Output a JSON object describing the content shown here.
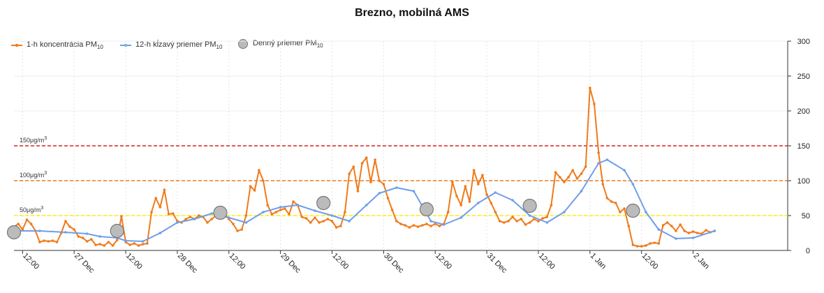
{
  "chart_data": {
    "type": "line",
    "title": "Brezno, mobilná AMS",
    "y_axis": {
      "min": 0,
      "max": 300,
      "ticks": [
        0,
        50,
        100,
        150,
        200,
        250,
        300
      ],
      "position": "right"
    },
    "x_axis": {
      "start": "2020-12-26T10:00",
      "end": "2021-01-02T22:00",
      "tick_labels": [
        "12:00",
        "27 Dec",
        "12:00",
        "28 Dec",
        "12:00",
        "29 Dec",
        "12:00",
        "30 Dec",
        "12:00",
        "31 Dec",
        "12:00",
        "1 Jan",
        "12:00",
        "2 Jan"
      ],
      "tick_times": [
        "2020-12-26T12:00",
        "2020-12-27T00:00",
        "2020-12-27T12:00",
        "2020-12-28T00:00",
        "2020-12-28T12:00",
        "2020-12-29T00:00",
        "2020-12-29T12:00",
        "2020-12-30T00:00",
        "2020-12-30T12:00",
        "2020-12-31T00:00",
        "2020-12-31T12:00",
        "2021-01-01T00:00",
        "2021-01-01T12:00",
        "2021-01-02T00:00"
      ]
    },
    "grid": true,
    "legend_position": "top-left",
    "thresholds": [
      {
        "value": 150,
        "label": "150μg/m",
        "sup": "3",
        "color": "#dd2222"
      },
      {
        "value": 100,
        "label": "100μg/m",
        "sup": "3",
        "color": "#f07a1a"
      },
      {
        "value": 50,
        "label": "50μg/m",
        "sup": "3",
        "color": "#ffee00"
      }
    ],
    "series": [
      {
        "name": "1-h koncentrácia PM",
        "name_sub": "10",
        "color": "#f07a1a",
        "kind": "line",
        "points": [
          [
            "2020-12-26T10:00",
            34
          ],
          [
            "2020-12-26T11:00",
            38
          ],
          [
            "2020-12-26T12:00",
            30
          ],
          [
            "2020-12-26T13:00",
            44
          ],
          [
            "2020-12-26T14:00",
            38
          ],
          [
            "2020-12-26T15:00",
            28
          ],
          [
            "2020-12-26T16:00",
            12
          ],
          [
            "2020-12-26T17:00",
            14
          ],
          [
            "2020-12-26T18:00",
            13
          ],
          [
            "2020-12-26T19:00",
            14
          ],
          [
            "2020-12-26T20:00",
            12
          ],
          [
            "2020-12-26T21:00",
            25
          ],
          [
            "2020-12-26T22:00",
            42
          ],
          [
            "2020-12-26T23:00",
            34
          ],
          [
            "2020-12-27T00:00",
            30
          ],
          [
            "2020-12-27T01:00",
            20
          ],
          [
            "2020-12-27T02:00",
            18
          ],
          [
            "2020-12-27T03:00",
            13
          ],
          [
            "2020-12-27T04:00",
            16
          ],
          [
            "2020-12-27T05:00",
            8
          ],
          [
            "2020-12-27T06:00",
            9
          ],
          [
            "2020-12-27T07:00",
            7
          ],
          [
            "2020-12-27T08:00",
            12
          ],
          [
            "2020-12-27T09:00",
            7
          ],
          [
            "2020-12-27T10:00",
            15
          ],
          [
            "2020-12-27T11:00",
            49
          ],
          [
            "2020-12-27T12:00",
            12
          ],
          [
            "2020-12-27T13:00",
            8
          ],
          [
            "2020-12-27T14:00",
            10
          ],
          [
            "2020-12-27T15:00",
            7
          ],
          [
            "2020-12-27T16:00",
            9
          ],
          [
            "2020-12-27T17:00",
            10
          ],
          [
            "2020-12-27T18:00",
            55
          ],
          [
            "2020-12-27T19:00",
            75
          ],
          [
            "2020-12-27T20:00",
            62
          ],
          [
            "2020-12-27T21:00",
            87
          ],
          [
            "2020-12-27T22:00",
            52
          ],
          [
            "2020-12-27T23:00",
            53
          ],
          [
            "2020-12-28T00:00",
            42
          ],
          [
            "2020-12-28T01:00",
            40
          ],
          [
            "2020-12-28T02:00",
            45
          ],
          [
            "2020-12-28T03:00",
            48
          ],
          [
            "2020-12-28T04:00",
            45
          ],
          [
            "2020-12-28T05:00",
            50
          ],
          [
            "2020-12-28T06:00",
            48
          ],
          [
            "2020-12-28T07:00",
            40
          ],
          [
            "2020-12-28T08:00",
            45
          ],
          [
            "2020-12-28T09:00",
            50
          ],
          [
            "2020-12-28T10:00",
            55
          ],
          [
            "2020-12-28T11:00",
            52
          ],
          [
            "2020-12-28T12:00",
            45
          ],
          [
            "2020-12-28T13:00",
            38
          ],
          [
            "2020-12-28T14:00",
            28
          ],
          [
            "2020-12-28T15:00",
            30
          ],
          [
            "2020-12-28T16:00",
            50
          ],
          [
            "2020-12-28T17:00",
            92
          ],
          [
            "2020-12-28T18:00",
            86
          ],
          [
            "2020-12-28T19:00",
            115
          ],
          [
            "2020-12-28T20:00",
            100
          ],
          [
            "2020-12-28T21:00",
            65
          ],
          [
            "2020-12-28T22:00",
            52
          ],
          [
            "2020-12-28T23:00",
            55
          ],
          [
            "2020-12-29T00:00",
            58
          ],
          [
            "2020-12-29T01:00",
            60
          ],
          [
            "2020-12-29T02:00",
            52
          ],
          [
            "2020-12-29T03:00",
            70
          ],
          [
            "2020-12-29T04:00",
            65
          ],
          [
            "2020-12-29T05:00",
            48
          ],
          [
            "2020-12-29T06:00",
            46
          ],
          [
            "2020-12-29T07:00",
            40
          ],
          [
            "2020-12-29T08:00",
            47
          ],
          [
            "2020-12-29T09:00",
            40
          ],
          [
            "2020-12-29T10:00",
            42
          ],
          [
            "2020-12-29T11:00",
            45
          ],
          [
            "2020-12-29T12:00",
            42
          ],
          [
            "2020-12-29T13:00",
            33
          ],
          [
            "2020-12-29T14:00",
            35
          ],
          [
            "2020-12-29T15:00",
            55
          ],
          [
            "2020-12-29T16:00",
            110
          ],
          [
            "2020-12-29T17:00",
            120
          ],
          [
            "2020-12-29T18:00",
            85
          ],
          [
            "2020-12-29T19:00",
            125
          ],
          [
            "2020-12-29T20:00",
            133
          ],
          [
            "2020-12-29T21:00",
            98
          ],
          [
            "2020-12-29T22:00",
            130
          ],
          [
            "2020-12-29T23:00",
            100
          ],
          [
            "2020-12-30T00:00",
            95
          ],
          [
            "2020-12-30T01:00",
            75
          ],
          [
            "2020-12-30T02:00",
            58
          ],
          [
            "2020-12-30T03:00",
            42
          ],
          [
            "2020-12-30T04:00",
            38
          ],
          [
            "2020-12-30T05:00",
            36
          ],
          [
            "2020-12-30T06:00",
            33
          ],
          [
            "2020-12-30T07:00",
            36
          ],
          [
            "2020-12-30T08:00",
            34
          ],
          [
            "2020-12-30T09:00",
            36
          ],
          [
            "2020-12-30T10:00",
            38
          ],
          [
            "2020-12-30T11:00",
            35
          ],
          [
            "2020-12-30T12:00",
            38
          ],
          [
            "2020-12-30T13:00",
            35
          ],
          [
            "2020-12-30T14:00",
            38
          ],
          [
            "2020-12-30T15:00",
            55
          ],
          [
            "2020-12-30T16:00",
            98
          ],
          [
            "2020-12-30T17:00",
            78
          ],
          [
            "2020-12-30T18:00",
            65
          ],
          [
            "2020-12-30T19:00",
            92
          ],
          [
            "2020-12-30T20:00",
            70
          ],
          [
            "2020-12-30T21:00",
            115
          ],
          [
            "2020-12-30T22:00",
            95
          ],
          [
            "2020-12-30T23:00",
            108
          ],
          [
            "2020-12-31T00:00",
            80
          ],
          [
            "2020-12-31T01:00",
            68
          ],
          [
            "2020-12-31T02:00",
            55
          ],
          [
            "2020-12-31T03:00",
            42
          ],
          [
            "2020-12-31T04:00",
            40
          ],
          [
            "2020-12-31T05:00",
            42
          ],
          [
            "2020-12-31T06:00",
            48
          ],
          [
            "2020-12-31T07:00",
            42
          ],
          [
            "2020-12-31T08:00",
            45
          ],
          [
            "2020-12-31T09:00",
            37
          ],
          [
            "2020-12-31T10:00",
            40
          ],
          [
            "2020-12-31T11:00",
            45
          ],
          [
            "2020-12-31T12:00",
            42
          ],
          [
            "2020-12-31T13:00",
            46
          ],
          [
            "2020-12-31T14:00",
            48
          ],
          [
            "2020-12-31T15:00",
            65
          ],
          [
            "2020-12-31T16:00",
            112
          ],
          [
            "2020-12-31T17:00",
            105
          ],
          [
            "2020-12-31T18:00",
            98
          ],
          [
            "2020-12-31T19:00",
            105
          ],
          [
            "2020-12-31T20:00",
            115
          ],
          [
            "2020-12-31T21:00",
            103
          ],
          [
            "2020-12-31T22:00",
            110
          ],
          [
            "2020-12-31T23:00",
            120
          ],
          [
            "2021-01-01T00:00",
            233
          ],
          [
            "2021-01-01T01:00",
            210
          ],
          [
            "2021-01-01T02:00",
            140
          ],
          [
            "2021-01-01T03:00",
            95
          ],
          [
            "2021-01-01T04:00",
            75
          ],
          [
            "2021-01-01T05:00",
            70
          ],
          [
            "2021-01-01T06:00",
            68
          ],
          [
            "2021-01-01T07:00",
            55
          ],
          [
            "2021-01-01T08:00",
            60
          ],
          [
            "2021-01-01T09:00",
            35
          ],
          [
            "2021-01-01T10:00",
            8
          ],
          [
            "2021-01-01T11:00",
            6
          ],
          [
            "2021-01-01T12:00",
            6
          ],
          [
            "2021-01-01T13:00",
            7
          ],
          [
            "2021-01-01T14:00",
            10
          ],
          [
            "2021-01-01T15:00",
            11
          ],
          [
            "2021-01-01T16:00",
            10
          ],
          [
            "2021-01-01T17:00",
            36
          ],
          [
            "2021-01-01T18:00",
            40
          ],
          [
            "2021-01-01T19:00",
            35
          ],
          [
            "2021-01-01T20:00",
            28
          ],
          [
            "2021-01-01T21:00",
            37
          ],
          [
            "2021-01-01T22:00",
            28
          ],
          [
            "2021-01-01T23:00",
            25
          ],
          [
            "2021-01-02T00:00",
            27
          ],
          [
            "2021-01-02T01:00",
            25
          ],
          [
            "2021-01-02T02:00",
            24
          ],
          [
            "2021-01-02T03:00",
            29
          ],
          [
            "2021-01-02T04:00",
            26
          ],
          [
            "2021-01-02T05:00",
            28
          ]
        ]
      },
      {
        "name": "12-h kĺzavý priemer PM",
        "name_sub": "10",
        "color": "#6f9ee8",
        "kind": "line",
        "points": [
          [
            "2020-12-26T10:00",
            28
          ],
          [
            "2020-12-26T16:00",
            28
          ],
          [
            "2020-12-26T22:00",
            26
          ],
          [
            "2020-12-27T03:00",
            24
          ],
          [
            "2020-12-27T06:00",
            20
          ],
          [
            "2020-12-27T10:00",
            18
          ],
          [
            "2020-12-27T12:00",
            14
          ],
          [
            "2020-12-27T16:00",
            13
          ],
          [
            "2020-12-27T20:00",
            25
          ],
          [
            "2020-12-28T00:00",
            40
          ],
          [
            "2020-12-28T04:00",
            45
          ],
          [
            "2020-12-28T08:00",
            53
          ],
          [
            "2020-12-28T12:00",
            47
          ],
          [
            "2020-12-28T16:00",
            40
          ],
          [
            "2020-12-28T20:00",
            55
          ],
          [
            "2020-12-29T00:00",
            62
          ],
          [
            "2020-12-29T04:00",
            65
          ],
          [
            "2020-12-29T08:00",
            57
          ],
          [
            "2020-12-29T12:00",
            50
          ],
          [
            "2020-12-29T16:00",
            42
          ],
          [
            "2020-12-29T20:00",
            65
          ],
          [
            "2020-12-29T23:00",
            82
          ],
          [
            "2020-12-30T03:00",
            90
          ],
          [
            "2020-12-30T07:00",
            85
          ],
          [
            "2020-12-30T11:00",
            42
          ],
          [
            "2020-12-30T14:00",
            37
          ],
          [
            "2020-12-30T18:00",
            47
          ],
          [
            "2020-12-30T22:00",
            68
          ],
          [
            "2020-12-31T02:00",
            83
          ],
          [
            "2020-12-31T06:00",
            72
          ],
          [
            "2020-12-31T10:00",
            50
          ],
          [
            "2020-12-31T14:00",
            40
          ],
          [
            "2020-12-31T18:00",
            55
          ],
          [
            "2020-12-31T22:00",
            85
          ],
          [
            "2021-01-01T02:00",
            125
          ],
          [
            "2021-01-01T04:00",
            130
          ],
          [
            "2021-01-01T08:00",
            115
          ],
          [
            "2021-01-01T10:00",
            95
          ],
          [
            "2021-01-01T13:00",
            55
          ],
          [
            "2021-01-01T16:00",
            30
          ],
          [
            "2021-01-01T20:00",
            17
          ],
          [
            "2021-01-02T00:00",
            18
          ],
          [
            "2021-01-02T05:00",
            28
          ]
        ]
      },
      {
        "name": "Denný priemer PM",
        "name_sub": "10",
        "color": "#bbbbbb",
        "kind": "scatter",
        "points": [
          [
            "2020-12-26T10:00",
            26
          ],
          [
            "2020-12-27T10:00",
            28
          ],
          [
            "2020-12-28T10:00",
            54
          ],
          [
            "2020-12-29T10:00",
            68
          ],
          [
            "2020-12-30T10:00",
            59
          ],
          [
            "2020-12-31T10:00",
            64
          ],
          [
            "2021-01-01T10:00",
            57
          ]
        ]
      }
    ]
  }
}
